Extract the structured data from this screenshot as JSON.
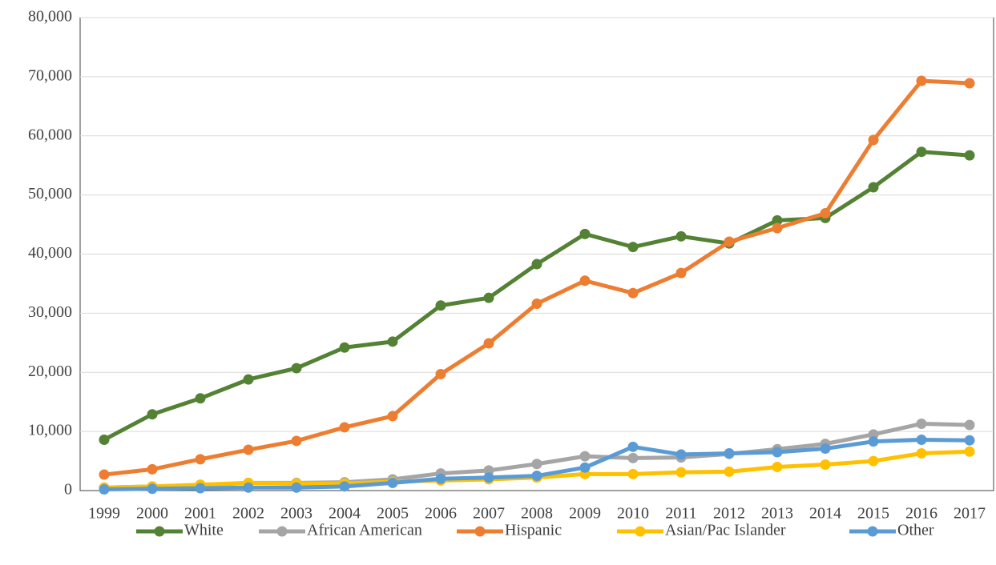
{
  "chart_data": {
    "type": "line",
    "categories": [
      "1999",
      "2000",
      "2001",
      "2002",
      "2003",
      "2004",
      "2005",
      "2006",
      "2007",
      "2008",
      "2009",
      "2010",
      "2011",
      "2012",
      "2013",
      "2014",
      "2015",
      "2016",
      "2017"
    ],
    "series": [
      {
        "name": "White",
        "color": "#548235",
        "values": [
          8600,
          12900,
          15600,
          18800,
          20700,
          24200,
          25200,
          31300,
          32600,
          38300,
          43400,
          41200,
          43000,
          41800,
          45700,
          46100,
          51300,
          57300,
          56700
        ]
      },
      {
        "name": "African American",
        "color": "#a5a5a5",
        "values": [
          500,
          700,
          900,
          1300,
          1300,
          1400,
          1900,
          2900,
          3400,
          4500,
          5800,
          5500,
          5600,
          6200,
          7000,
          7900,
          9500,
          11300,
          11100
        ]
      },
      {
        "name": "Hispanic",
        "color": "#ed7d31",
        "values": [
          2700,
          3600,
          5300,
          6900,
          8400,
          10700,
          12600,
          19700,
          24900,
          31600,
          35500,
          33400,
          36800,
          42100,
          44400,
          46900,
          59300,
          69300,
          68900
        ]
      },
      {
        "name": "Asian/Pac Islander",
        "color": "#ffc000",
        "values": [
          500,
          700,
          1000,
          1300,
          1200,
          1200,
          1500,
          1700,
          1900,
          2200,
          2800,
          2800,
          3100,
          3200,
          4000,
          4400,
          5000,
          6300,
          6600
        ]
      },
      {
        "name": "Other",
        "color": "#5b9bd5",
        "values": [
          200,
          300,
          400,
          500,
          500,
          700,
          1300,
          2000,
          2200,
          2500,
          3900,
          7400,
          6100,
          6300,
          6500,
          7100,
          8300,
          8600,
          8500
        ]
      }
    ],
    "ylim": [
      0,
      80000
    ],
    "yticks": [
      0,
      {
        "value": 10000,
        "label": "10,000"
      },
      {
        "value": 20000,
        "label": "20,000"
      },
      {
        "value": 30000,
        "label": "30,000"
      },
      {
        "value": 40000,
        "label": "40,000"
      },
      {
        "value": 50000,
        "label": "50,000"
      },
      {
        "value": 60000,
        "label": "60,000"
      },
      {
        "value": 70000,
        "label": "70,000"
      },
      {
        "value": 80000,
        "label": "80,000"
      }
    ],
    "grid": true,
    "legend": "bottom"
  }
}
